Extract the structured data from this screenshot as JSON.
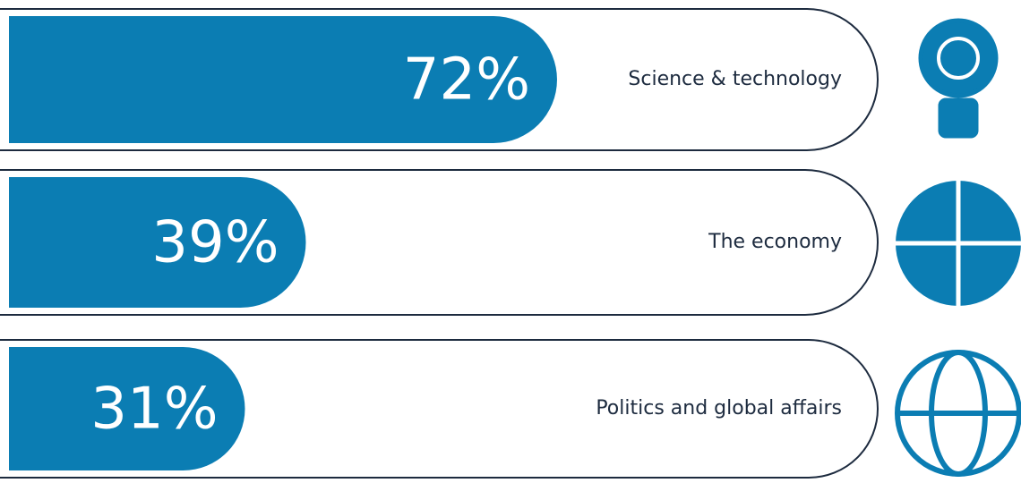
{
  "chart_data": {
    "type": "bar",
    "orientation": "horizontal",
    "categories": [
      "Science & technology",
      "The economy",
      "Politics and global affairs"
    ],
    "values": [
      72,
      39,
      31
    ],
    "value_labels": [
      "72%",
      "39%",
      "31%"
    ],
    "color": "#0b7db3"
  }
}
